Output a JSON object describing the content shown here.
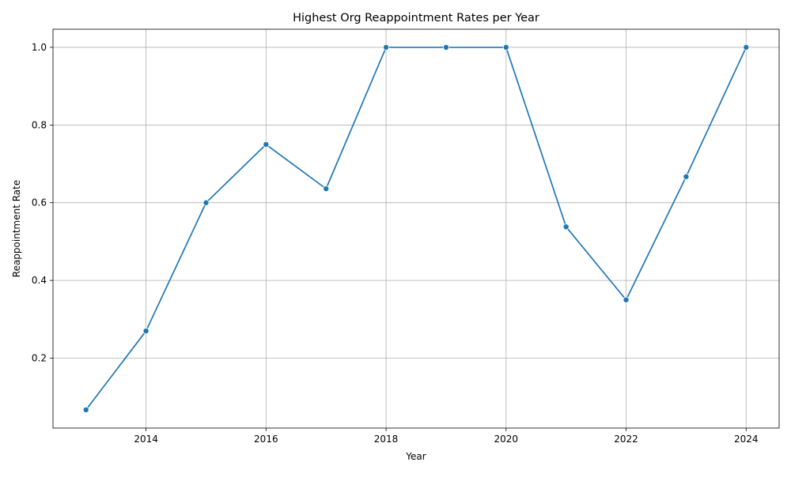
{
  "chart_data": {
    "type": "line",
    "title": "Highest Org Reappointment Rates per Year",
    "xlabel": "Year",
    "ylabel": "Reappointment Rate",
    "x": [
      2013,
      2014,
      2015,
      2016,
      2017,
      2018,
      2019,
      2020,
      2021,
      2022,
      2023,
      2024
    ],
    "series": [
      {
        "values": [
          0.067,
          0.27,
          0.6,
          0.75,
          0.636,
          1.0,
          1.0,
          1.0,
          0.538,
          0.35,
          0.667,
          1.0
        ],
        "color": "#1f77b4"
      }
    ],
    "xlim": [
      2012.45,
      2024.55
    ],
    "ylim": [
      0.0201,
      1.0466
    ],
    "xticks": [
      2014,
      2016,
      2018,
      2020,
      2022,
      2024
    ],
    "yticks": [
      0.2,
      0.4,
      0.6,
      0.8,
      1.0
    ],
    "xtick_labels": [
      "2014",
      "2016",
      "2018",
      "2020",
      "2022",
      "2024"
    ],
    "ytick_labels": [
      "0.2",
      "0.4",
      "0.6",
      "0.8",
      "1.0"
    ],
    "grid": true,
    "marker": "circle"
  }
}
